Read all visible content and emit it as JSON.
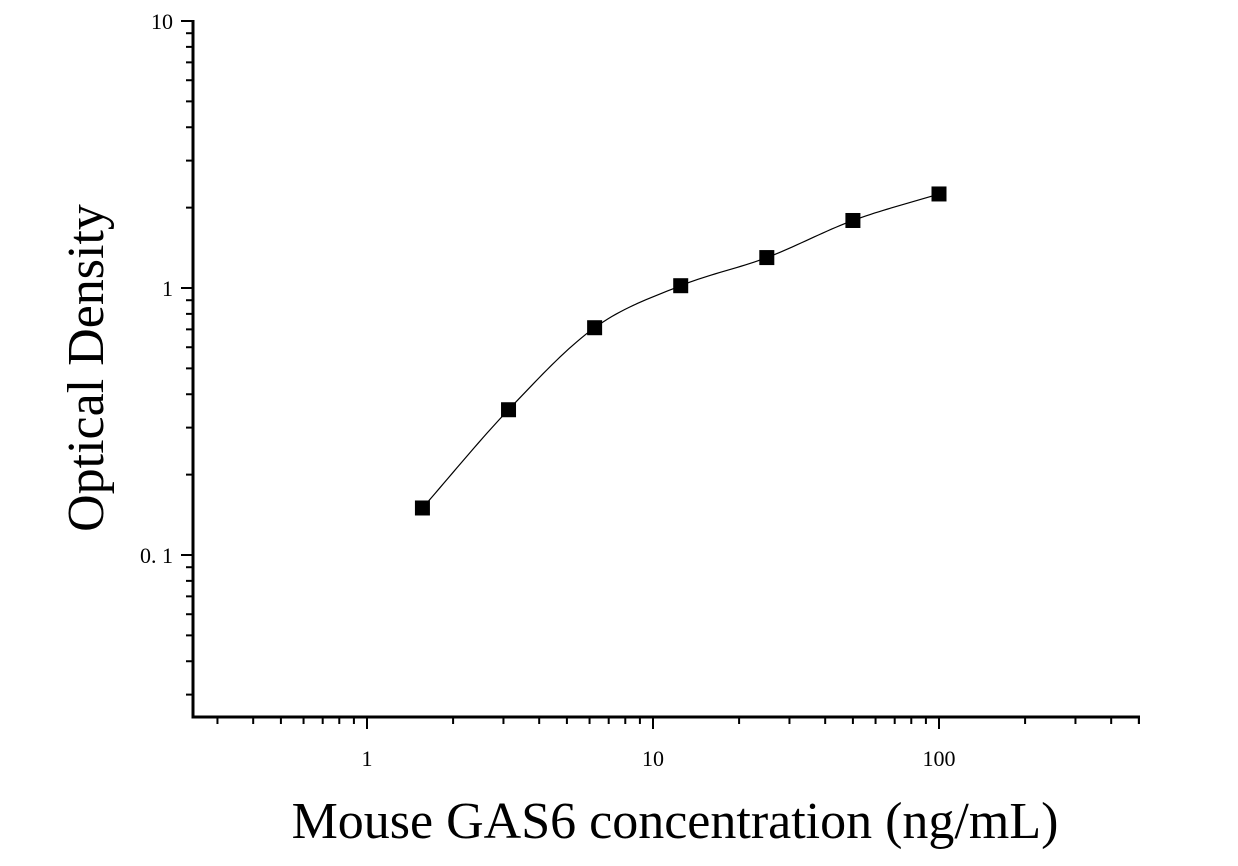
{
  "chart_data": {
    "type": "scatter",
    "x_scale": "log",
    "y_scale": "log",
    "xlabel": "Mouse GAS6 concentration (ng/mL)",
    "ylabel": "Optical Density",
    "xlim": [
      0.25,
      500
    ],
    "ylim": [
      0.03,
      10
    ],
    "x_tick_labels": [
      {
        "value": 1,
        "label": "1"
      },
      {
        "value": 10,
        "label": "10"
      },
      {
        "value": 100,
        "label": "100"
      }
    ],
    "y_tick_labels": [
      {
        "value": 0.1,
        "label": "0. 1"
      },
      {
        "value": 1,
        "label": "1"
      },
      {
        "value": 10,
        "label": "10"
      }
    ],
    "series": [
      {
        "x": [
          1.5625,
          3.125,
          6.25,
          12.5,
          25,
          50,
          100
        ],
        "y": [
          0.15,
          0.35,
          0.71,
          1.02,
          1.3,
          1.79,
          2.25
        ],
        "marker": "square",
        "color": "#000000",
        "fit_line": true
      }
    ],
    "grid": false,
    "legend": "none"
  }
}
